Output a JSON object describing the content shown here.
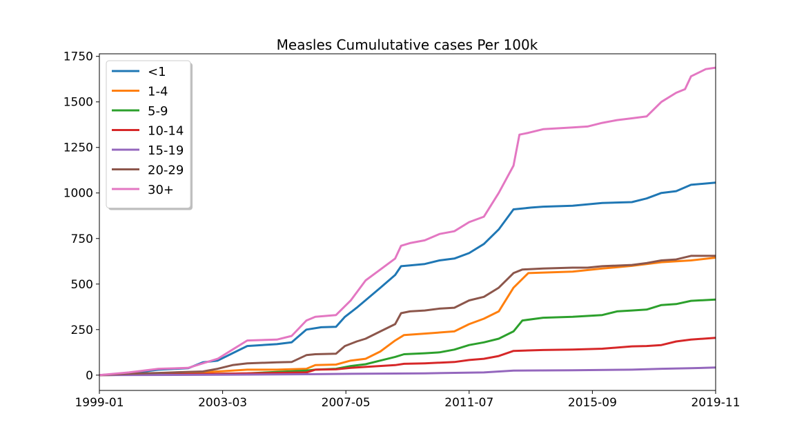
{
  "chart_data": {
    "type": "line",
    "title": "Measles Cumulutative cases Per 100k",
    "xlabel": "",
    "ylabel": "",
    "x_tick_labels": [
      "1999-01",
      "2003-03",
      "2007-05",
      "2011-07",
      "2015-09",
      "2019-11"
    ],
    "x_tick_years": [
      1999.0,
      2003.1667,
      2007.3333,
      2011.5,
      2015.6667,
      2019.8333
    ],
    "xlim": [
      1999.0,
      2019.8333
    ],
    "y_ticks": [
      0,
      250,
      500,
      750,
      1000,
      1250,
      1500,
      1750
    ],
    "y_tick_labels": [
      "0",
      "250",
      "500",
      "750",
      "1000",
      "1250",
      "1500",
      "1750"
    ],
    "ylim": [
      -84,
      1764
    ],
    "grid": false,
    "legend_position": "top-left",
    "series": [
      {
        "name": "<1",
        "color": "#1f77b4",
        "x": [
          1999.0,
          2000.0,
          2001.0,
          2002.0,
          2002.5,
          2003.0,
          2003.5,
          2004.0,
          2005.0,
          2005.5,
          2006.0,
          2006.5,
          2007.0,
          2007.3,
          2007.7,
          2008.5,
          2009.0,
          2009.2,
          2009.5,
          2010.0,
          2010.5,
          2011.0,
          2011.5,
          2012.0,
          2012.5,
          2013.0,
          2013.3,
          2013.6,
          2014.0,
          2015.0,
          2016.0,
          2017.0,
          2017.5,
          2018.0,
          2018.5,
          2019.0,
          2019.83
        ],
        "y": [
          0,
          10,
          30,
          38,
          70,
          80,
          120,
          160,
          170,
          180,
          250,
          263,
          265,
          320,
          370,
          480,
          550,
          598,
          602,
          610,
          630,
          640,
          670,
          720,
          800,
          910,
          915,
          920,
          925,
          930,
          945,
          950,
          970,
          1000,
          1010,
          1045,
          1057
        ]
      },
      {
        "name": "1-4",
        "color": "#ff7f0e",
        "x": [
          1999.0,
          2001.0,
          2002.5,
          2003.5,
          2004.0,
          2005.0,
          2006.0,
          2006.3,
          2007.0,
          2007.5,
          2008.0,
          2008.5,
          2009.0,
          2009.3,
          2010.0,
          2011.0,
          2011.5,
          2012.0,
          2012.5,
          2013.0,
          2013.5,
          2015.0,
          2016.0,
          2017.0,
          2018.0,
          2019.0,
          2019.83
        ],
        "y": [
          0,
          5,
          15,
          25,
          30,
          30,
          35,
          55,
          58,
          80,
          90,
          130,
          190,
          220,
          228,
          240,
          280,
          310,
          350,
          480,
          560,
          568,
          585,
          600,
          620,
          630,
          645
        ]
      },
      {
        "name": "5-9",
        "color": "#2ca02c",
        "x": [
          1999.0,
          2002.0,
          2004.0,
          2006.0,
          2006.3,
          2007.0,
          2007.5,
          2008.0,
          2008.5,
          2009.0,
          2009.3,
          2010.0,
          2010.5,
          2011.0,
          2011.5,
          2012.0,
          2012.5,
          2013.0,
          2013.3,
          2014.0,
          2015.0,
          2016.0,
          2016.5,
          2017.0,
          2017.5,
          2018.0,
          2018.5,
          2019.0,
          2019.83
        ],
        "y": [
          0,
          5,
          10,
          25,
          30,
          35,
          50,
          60,
          80,
          100,
          115,
          120,
          125,
          140,
          165,
          180,
          200,
          240,
          300,
          315,
          320,
          330,
          350,
          355,
          360,
          385,
          390,
          408,
          415
        ]
      },
      {
        "name": "10-14",
        "color": "#d62728",
        "x": [
          1999.0,
          2002.0,
          2004.0,
          2006.0,
          2006.3,
          2007.0,
          2007.5,
          2008.0,
          2009.0,
          2009.3,
          2010.0,
          2011.0,
          2011.5,
          2012.0,
          2012.5,
          2013.0,
          2014.0,
          2015.0,
          2016.0,
          2017.0,
          2017.5,
          2018.0,
          2018.5,
          2019.0,
          2019.83
        ],
        "y": [
          0,
          5,
          10,
          15,
          30,
          32,
          40,
          45,
          55,
          62,
          65,
          72,
          83,
          90,
          105,
          133,
          138,
          140,
          145,
          158,
          160,
          165,
          185,
          195,
          205
        ]
      },
      {
        "name": "15-19",
        "color": "#9467bd",
        "x": [
          1999.0,
          2003.0,
          2006.0,
          2008.0,
          2010.0,
          2012.0,
          2013.0,
          2015.0,
          2017.0,
          2018.0,
          2019.0,
          2019.83
        ],
        "y": [
          0,
          2,
          5,
          8,
          10,
          15,
          25,
          27,
          30,
          35,
          38,
          42
        ]
      },
      {
        "name": "20-29",
        "color": "#8c564b",
        "x": [
          1999.0,
          2000.0,
          2001.0,
          2002.5,
          2003.0,
          2003.5,
          2004.0,
          2005.0,
          2005.5,
          2006.0,
          2006.3,
          2007.0,
          2007.3,
          2007.7,
          2008.0,
          2008.5,
          2009.0,
          2009.2,
          2009.5,
          2010.0,
          2010.5,
          2011.0,
          2011.5,
          2012.0,
          2012.5,
          2013.0,
          2013.3,
          2014.0,
          2015.0,
          2015.5,
          2016.0,
          2017.0,
          2017.5,
          2018.0,
          2018.5,
          2019.0,
          2019.83
        ],
        "y": [
          0,
          8,
          12,
          20,
          35,
          55,
          65,
          70,
          72,
          110,
          115,
          118,
          160,
          185,
          200,
          240,
          280,
          340,
          350,
          355,
          365,
          370,
          410,
          430,
          480,
          560,
          580,
          585,
          590,
          590,
          598,
          605,
          615,
          630,
          635,
          655,
          655
        ]
      },
      {
        "name": "30+",
        "color": "#e377c2",
        "x": [
          1999.0,
          2000.0,
          2001.0,
          2002.0,
          2002.5,
          2003.0,
          2003.5,
          2004.0,
          2005.0,
          2005.5,
          2006.0,
          2006.3,
          2007.0,
          2007.5,
          2008.0,
          2008.5,
          2009.0,
          2009.2,
          2009.5,
          2010.0,
          2010.5,
          2011.0,
          2011.5,
          2012.0,
          2012.5,
          2013.0,
          2013.2,
          2013.5,
          2014.0,
          2015.0,
          2015.5,
          2016.0,
          2016.5,
          2017.0,
          2017.5,
          2018.0,
          2018.5,
          2018.8,
          2019.0,
          2019.5,
          2019.83
        ],
        "y": [
          0,
          15,
          35,
          40,
          65,
          90,
          140,
          190,
          195,
          215,
          300,
          320,
          330,
          410,
          520,
          580,
          640,
          710,
          725,
          740,
          775,
          790,
          840,
          870,
          1000,
          1150,
          1320,
          1330,
          1350,
          1360,
          1365,
          1385,
          1400,
          1410,
          1420,
          1500,
          1550,
          1570,
          1640,
          1680,
          1688
        ]
      }
    ]
  }
}
